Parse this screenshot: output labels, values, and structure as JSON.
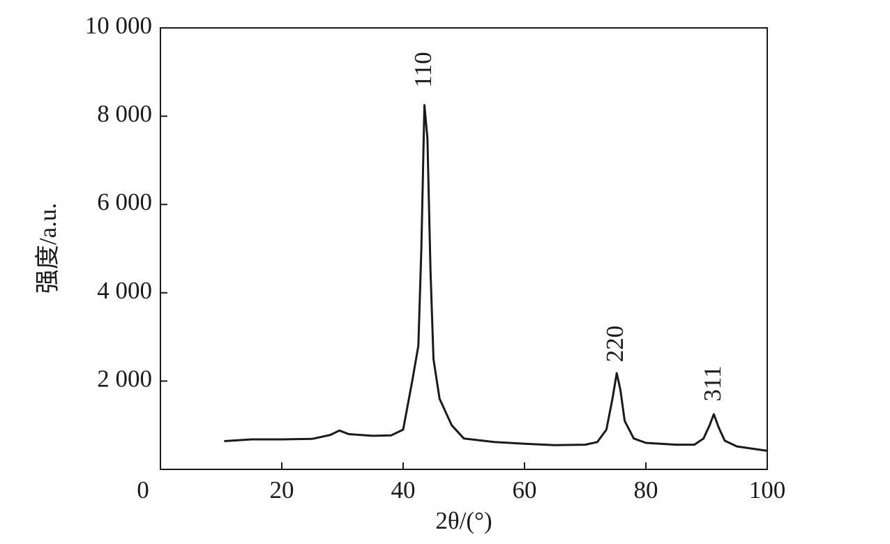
{
  "chart_data": {
    "type": "line",
    "x_label": "2θ/(°)",
    "y_label": "强度/a.u.",
    "x": [
      10.5,
      15,
      20,
      25,
      28,
      29.5,
      31,
      35,
      38,
      40,
      41.5,
      42.5,
      43,
      43.5,
      44,
      44.5,
      45,
      46,
      48,
      50,
      55,
      60,
      65,
      70,
      72,
      73.5,
      74.5,
      75.2,
      75.8,
      76.5,
      78,
      80,
      85,
      88,
      89.5,
      90.5,
      91.2,
      92,
      93,
      95,
      100
    ],
    "values": [
      640,
      680,
      680,
      690,
      780,
      880,
      800,
      760,
      770,
      900,
      2000,
      2800,
      5000,
      8250,
      7500,
      4500,
      2500,
      1600,
      1000,
      700,
      620,
      580,
      550,
      560,
      620,
      900,
      1600,
      2180,
      1800,
      1100,
      700,
      600,
      560,
      560,
      700,
      1000,
      1250,
      950,
      650,
      520,
      420
    ],
    "color": "#1a1a1a",
    "annotations": [
      "110",
      "220",
      "311"
    ],
    "xlim": [
      0,
      100
    ],
    "ylim": [
      0,
      10000
    ],
    "xticks": [
      0,
      20,
      40,
      60,
      80,
      100
    ],
    "yticks": [
      {
        "value": 2000,
        "label": "2 000"
      },
      {
        "value": 4000,
        "label": "4 000"
      },
      {
        "value": 6000,
        "label": "6 000"
      },
      {
        "value": 8000,
        "label": "8 000"
      },
      {
        "value": 10000,
        "label": "10 000"
      }
    ],
    "grid": false
  }
}
